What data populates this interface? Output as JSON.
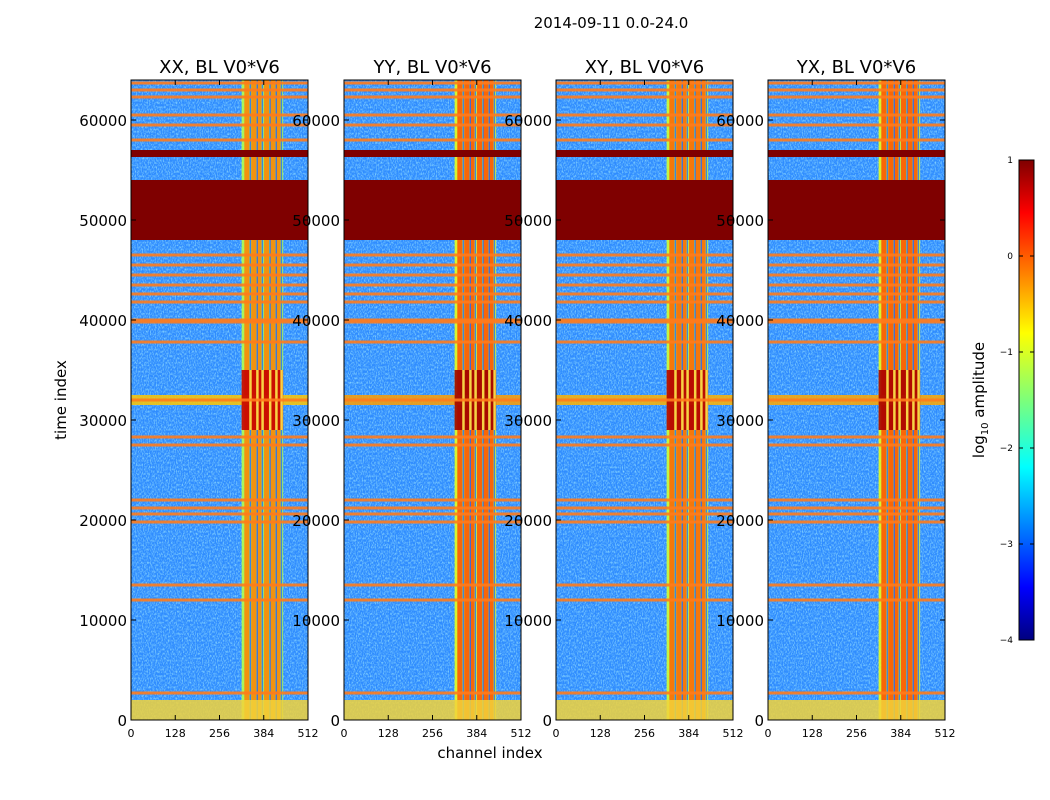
{
  "chart_data": {
    "type": "heatmap",
    "title": "2014-09-11 0.0-24.0",
    "xlabel": "channel index",
    "ylabel": "time index",
    "xlim": [
      0,
      512
    ],
    "ylim": [
      0,
      64000
    ],
    "x_ticks": [
      "0",
      "128",
      "256",
      "384",
      "512"
    ],
    "y_ticks": [
      "0",
      "10000",
      "20000",
      "30000",
      "40000",
      "50000",
      "60000"
    ],
    "panels": [
      {
        "title": "XX, BL V0*V6",
        "band_level": 0.55,
        "flare_level": 0.93
      },
      {
        "title": "YY, BL V0*V6",
        "band_level": 0.6,
        "flare_level": 0.97
      },
      {
        "title": "XY, BL V0*V6",
        "band_level": 0.58,
        "flare_level": 0.95
      },
      {
        "title": "YX, BL V0*V6",
        "band_level": 0.6,
        "flare_level": 0.96
      }
    ],
    "colorbar": {
      "label": "log10 amplitude",
      "label_main": "log",
      "label_sub": "10",
      "label_rest": " amplitude",
      "range": [
        -4,
        1
      ],
      "ticks": [
        "1",
        "0",
        "−1",
        "−2",
        "−3",
        "−4"
      ],
      "colormap": "jet"
    },
    "features": {
      "saturated_time_range": [
        48000,
        54000
      ],
      "saturated_band_time_range": [
        56300,
        57000
      ],
      "rfi_channel_range": [
        320,
        440
      ],
      "flare_time_range": [
        29000,
        35000
      ],
      "bright_time_range": [
        0,
        2000
      ],
      "flagged_rows": [
        2700,
        12000,
        13500,
        19800,
        20600,
        21200,
        22000,
        27500,
        28300,
        32000,
        37800,
        39800,
        40000,
        41800,
        42600,
        43500,
        44500,
        45500,
        46500,
        58000,
        59500,
        60500,
        62300,
        63000,
        63700
      ],
      "bright_channels": [
        335,
        355,
        370,
        392,
        410,
        425
      ]
    },
    "colors": {
      "saturated": "#7f0000",
      "flag": "#ff7b1c",
      "background": "#2f8cff"
    }
  }
}
